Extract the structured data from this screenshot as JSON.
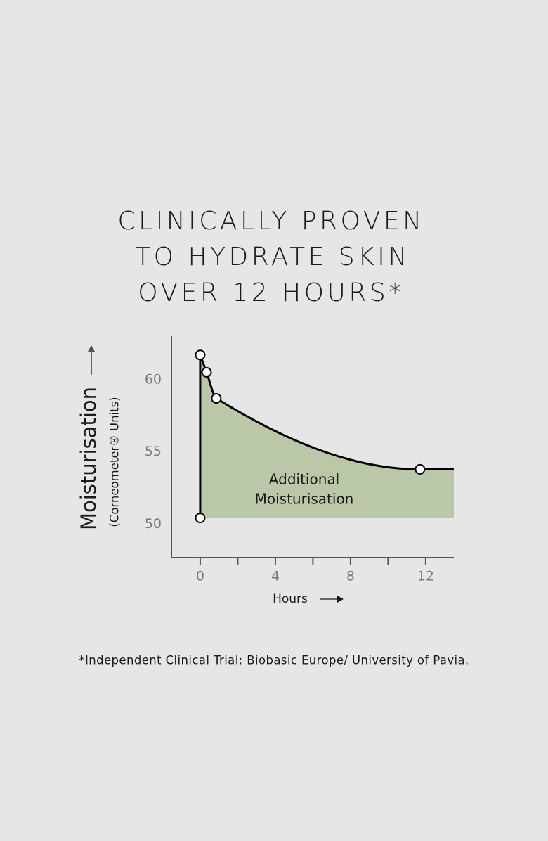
{
  "chart_data": {
    "type": "line",
    "title": [
      "CLINICALLY PROVEN",
      "TO HYDRATE SKIN",
      "OVER 12 HOURS*"
    ],
    "y_label": "Moisturisation",
    "y_sublabel": "(Corneometer® Units)",
    "x_label": "Hours",
    "annotation": [
      "Additional",
      "Moisturisation"
    ],
    "footnote": "*Independent Clinical Trial: Biobasic Europe/ University of Pavia.",
    "x": [
      0,
      0,
      0.34,
      0.86,
      11.7
    ],
    "values": [
      50.44,
      61.7,
      60.5,
      58.7,
      53.8
    ],
    "color": "#000000",
    "fill_color": "#bac8a8",
    "xlim": [
      -1.53,
      13.5
    ],
    "ylim": [
      47.7,
      63
    ],
    "xticks": [
      0,
      4,
      8,
      12
    ],
    "xminorticks": [
      2,
      6,
      10
    ],
    "yticks": [
      50,
      55,
      60
    ],
    "grid": false
  }
}
